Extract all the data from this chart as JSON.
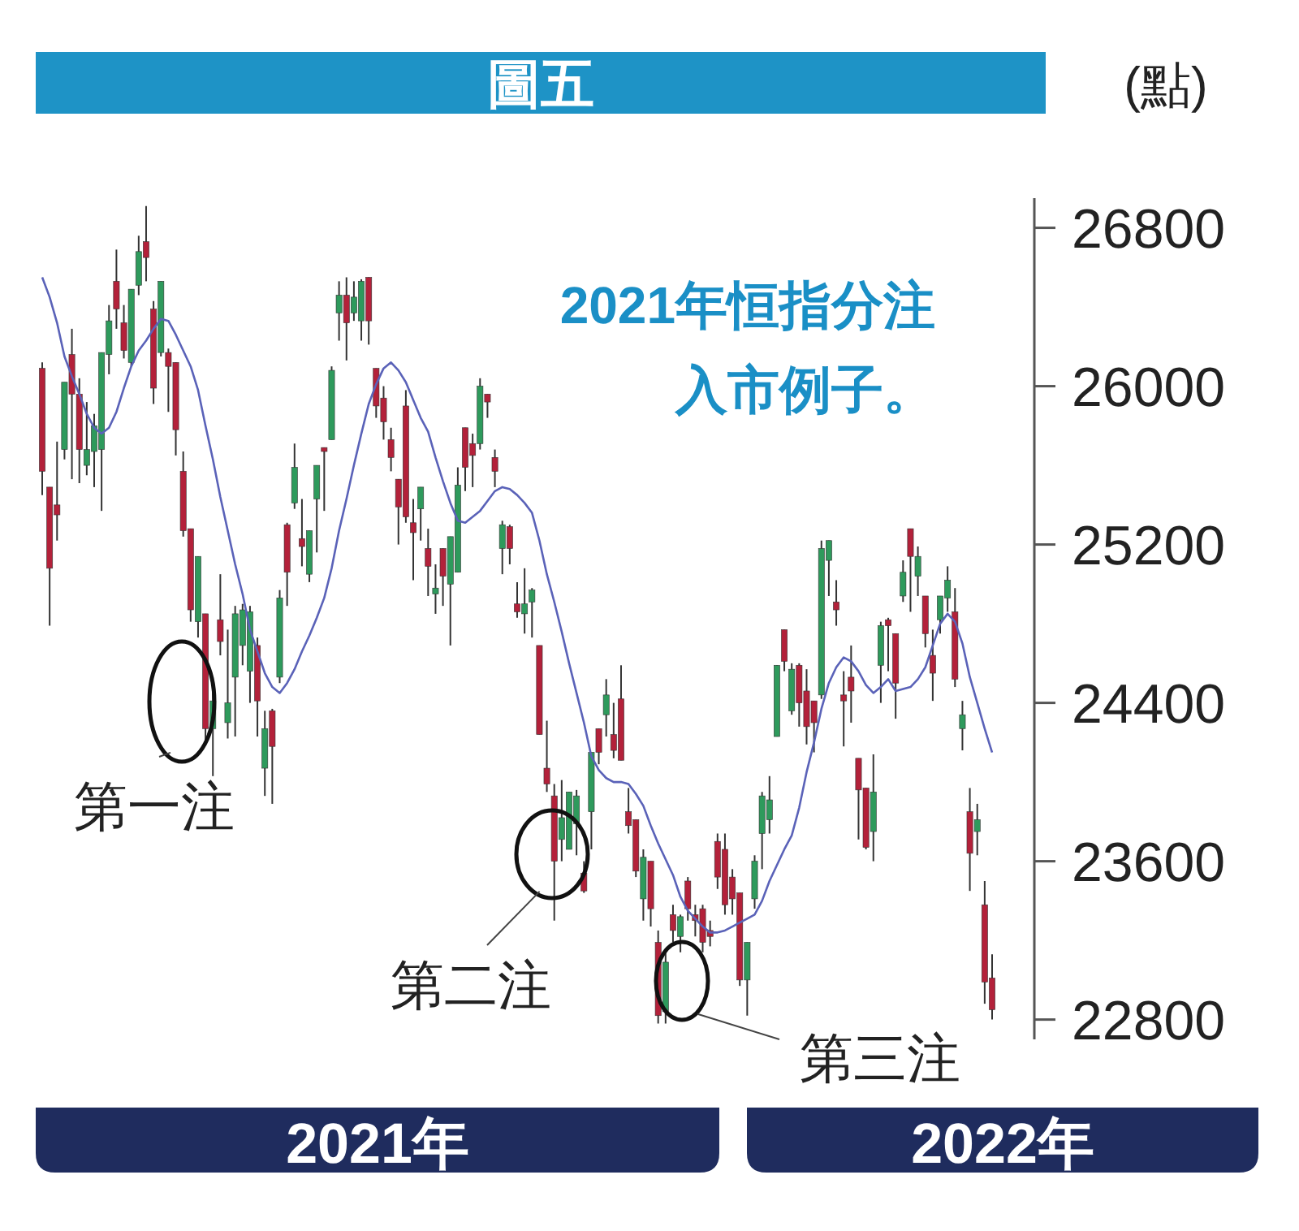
{
  "chart_data": {
    "type": "candlestick",
    "title": "圖五",
    "ylabel": "(點)",
    "annotations": [
      "2021年恒指分注入市例子。",
      "第一注",
      "第二注",
      "第三注",
      "2021年",
      "2022年"
    ],
    "categories": [
      null,
      null,
      null,
      null,
      null,
      null,
      null,
      null,
      null,
      null,
      null,
      null,
      null,
      null,
      null,
      null,
      null,
      null,
      null,
      null,
      null,
      null,
      null,
      null,
      null,
      null,
      null,
      null,
      null,
      null,
      null,
      null,
      null,
      null,
      null,
      null,
      null,
      null,
      null,
      null,
      null,
      null,
      null,
      null,
      null,
      null,
      null,
      null,
      null,
      null,
      null,
      null,
      null,
      null,
      null,
      null,
      null,
      null,
      null,
      null,
      null,
      null,
      null,
      null,
      null,
      null,
      null,
      null,
      null,
      null,
      null,
      null,
      null,
      null,
      null,
      null,
      null,
      null,
      null,
      null,
      null,
      null,
      null,
      null,
      null,
      null,
      null,
      null,
      null,
      null,
      null,
      null,
      null,
      null,
      null,
      null,
      null,
      null,
      null,
      null,
      null,
      null,
      null,
      null,
      null,
      null,
      null,
      null,
      null,
      null,
      null,
      null,
      null,
      null,
      null,
      null,
      null,
      null,
      null,
      null,
      null,
      null,
      null,
      null,
      null,
      null,
      null,
      null,
      null
    ],
    "ohlc": [
      [
        26090,
        26120,
        25450,
        25570
      ],
      [
        25490,
        25490,
        24790,
        25080
      ],
      [
        25400,
        25720,
        25220,
        25350
      ],
      [
        25680,
        26020,
        25630,
        26020
      ],
      [
        26160,
        26290,
        25530,
        25960
      ],
      [
        25960,
        26040,
        25510,
        25680
      ],
      [
        25600,
        25920,
        25550,
        25680
      ],
      [
        25670,
        25860,
        25490,
        25800
      ],
      [
        25680,
        26170,
        25370,
        26170
      ],
      [
        26160,
        26410,
        26060,
        26330
      ],
      [
        26530,
        26690,
        26290,
        26390
      ],
      [
        26320,
        26410,
        26140,
        26180
      ],
      [
        26120,
        26490,
        26100,
        26490
      ],
      [
        26510,
        26760,
        26460,
        26680
      ],
      [
        26730,
        26910,
        26530,
        26650
      ],
      [
        26390,
        26430,
        25910,
        25990
      ],
      [
        26170,
        26530,
        26150,
        26530
      ],
      [
        26170,
        26190,
        25870,
        26100
      ],
      [
        26120,
        26120,
        25650,
        25780
      ],
      [
        25570,
        25670,
        25240,
        25270
      ],
      [
        25280,
        25280,
        24810,
        24870
      ],
      [
        24810,
        25140,
        24730,
        25140
      ],
      [
        24850,
        24850,
        24200,
        24270
      ],
      [
        24270,
        24490,
        24030,
        24410
      ],
      [
        24820,
        25050,
        24640,
        24710
      ],
      [
        24300,
        24770,
        24220,
        24400
      ],
      [
        24530,
        24890,
        24230,
        24850
      ],
      [
        24690,
        24900,
        24590,
        24870
      ],
      [
        24560,
        24890,
        24400,
        24860
      ],
      [
        24690,
        24730,
        24230,
        24410
      ],
      [
        24070,
        24360,
        23930,
        24270
      ],
      [
        24360,
        24370,
        23890,
        24180
      ],
      [
        24530,
        24970,
        24500,
        24930
      ],
      [
        25300,
        25310,
        24890,
        25060
      ],
      [
        25410,
        25710,
        25380,
        25590
      ],
      [
        25230,
        25430,
        25090,
        25190
      ],
      [
        25050,
        25270,
        25010,
        25270
      ],
      [
        25430,
        25600,
        25160,
        25600
      ],
      [
        25690,
        25690,
        25370,
        25670
      ],
      [
        25730,
        26100,
        25730,
        26080
      ],
      [
        26370,
        26530,
        26230,
        26460
      ],
      [
        26460,
        26550,
        26130,
        26320
      ],
      [
        26370,
        26530,
        26330,
        26450
      ],
      [
        26330,
        26540,
        26230,
        26530
      ],
      [
        26550,
        26550,
        26210,
        26330
      ],
      [
        26090,
        26090,
        25840,
        25900
      ],
      [
        25940,
        26000,
        25730,
        25820
      ],
      [
        25730,
        25790,
        25570,
        25640
      ],
      [
        25530,
        25530,
        25200,
        25390
      ],
      [
        25900,
        25980,
        25310,
        25340
      ],
      [
        25310,
        25430,
        25020,
        25260
      ],
      [
        25380,
        25490,
        25220,
        25490
      ],
      [
        25180,
        25280,
        24940,
        25090
      ],
      [
        24950,
        25100,
        24850,
        24980
      ],
      [
        25180,
        25180,
        24890,
        25040
      ],
      [
        25000,
        25240,
        24690,
        25240
      ],
      [
        25060,
        25590,
        25060,
        25500
      ],
      [
        25790,
        25790,
        25470,
        25590
      ],
      [
        25710,
        25760,
        25490,
        25650
      ],
      [
        25710,
        26040,
        25680,
        26000
      ],
      [
        25960,
        25960,
        25840,
        25920
      ],
      [
        25640,
        25680,
        25490,
        25570
      ],
      [
        25180,
        25320,
        25050,
        25300
      ],
      [
        25290,
        25300,
        25100,
        25180
      ],
      [
        24900,
        25010,
        24830,
        24860
      ],
      [
        24850,
        25080,
        24750,
        24900
      ],
      [
        24910,
        24980,
        24730,
        24970
      ],
      [
        24690,
        24690,
        24240,
        24240
      ],
      [
        24070,
        24310,
        23950,
        23990
      ],
      [
        23930,
        23990,
        23300,
        23600
      ],
      [
        23710,
        24010,
        23600,
        23820
      ],
      [
        23660,
        23950,
        23660,
        23950
      ],
      [
        23790,
        23960,
        23630,
        23930
      ],
      [
        23540,
        23600,
        23440,
        23450
      ],
      [
        23850,
        24150,
        23660,
        24150
      ],
      [
        24270,
        24270,
        24090,
        24150
      ],
      [
        24340,
        24520,
        24230,
        24440
      ],
      [
        24240,
        24400,
        24120,
        24160
      ],
      [
        24420,
        24590,
        24110,
        24110
      ],
      [
        23850,
        23970,
        23740,
        23780
      ],
      [
        23810,
        23810,
        23520,
        23550
      ],
      [
        23410,
        23660,
        23300,
        23620
      ],
      [
        23600,
        23600,
        23270,
        23360
      ],
      [
        23190,
        23250,
        22780,
        22820
      ],
      [
        22840,
        23140,
        22780,
        23090
      ],
      [
        23330,
        23380,
        23190,
        23250
      ],
      [
        23220,
        23330,
        23140,
        23320
      ],
      [
        23500,
        23520,
        23300,
        23360
      ],
      [
        23330,
        23380,
        23220,
        23300
      ],
      [
        23360,
        23380,
        23140,
        23190
      ],
      [
        23250,
        23300,
        23170,
        23220
      ],
      [
        23700,
        23740,
        23460,
        23520
      ],
      [
        23660,
        23740,
        23330,
        23380
      ],
      [
        23520,
        23560,
        23330,
        23410
      ],
      [
        23440,
        23440,
        22970,
        23000
      ],
      [
        23000,
        23190,
        22820,
        23190
      ],
      [
        23410,
        23630,
        23360,
        23600
      ],
      [
        23740,
        23950,
        23560,
        23930
      ],
      [
        23810,
        24030,
        23740,
        23910
      ],
      [
        24230,
        24590,
        24230,
        24590
      ],
      [
        24770,
        24770,
        24560,
        24610
      ],
      [
        24360,
        24600,
        24340,
        24570
      ],
      [
        24590,
        24600,
        24280,
        24400
      ],
      [
        24460,
        24570,
        24190,
        24280
      ],
      [
        24410,
        24410,
        24150,
        24300
      ],
      [
        24440,
        25220,
        24420,
        25180
      ],
      [
        25120,
        25220,
        24940,
        25220
      ],
      [
        24910,
        25020,
        24790,
        24870
      ],
      [
        24440,
        24560,
        24180,
        24410
      ],
      [
        24530,
        24690,
        24300,
        24460
      ],
      [
        24120,
        24120,
        23710,
        23960
      ],
      [
        23970,
        23970,
        23660,
        23670
      ],
      [
        23750,
        24140,
        23600,
        23950
      ],
      [
        24590,
        24810,
        24400,
        24790
      ],
      [
        24820,
        24830,
        24560,
        24790
      ],
      [
        24750,
        24750,
        24320,
        24500
      ],
      [
        24940,
        25120,
        24910,
        25060
      ],
      [
        25280,
        25280,
        24860,
        25140
      ],
      [
        25040,
        25190,
        24940,
        25140
      ],
      [
        24940,
        24940,
        24680,
        24750
      ],
      [
        24640,
        24770,
        24410,
        24550
      ],
      [
        24820,
        24940,
        24750,
        24940
      ],
      [
        24930,
        25090,
        24860,
        25020
      ],
      [
        24860,
        24980,
        24480,
        24520
      ],
      [
        24270,
        24410,
        24160,
        24340
      ],
      [
        23850,
        23970,
        23450,
        23640
      ],
      [
        23750,
        23890,
        23630,
        23810
      ],
      [
        23380,
        23500,
        22880,
        22990
      ],
      [
        23010,
        23130,
        22800,
        22850
      ]
    ],
    "colors": [
      "#b3213a",
      "#b3213a",
      "#b3213a",
      "#2e9a5c",
      "#b3213a",
      "#b3213a",
      "#2e9a5c",
      "#2e9a5c",
      "#2e9a5c",
      "#2e9a5c",
      "#b3213a",
      "#b3213a",
      "#2e9a5c",
      "#2e9a5c",
      "#b3213a",
      "#b3213a",
      "#2e9a5c",
      "#b3213a",
      "#b3213a",
      "#b3213a",
      "#b3213a",
      "#2e9a5c",
      "#b3213a",
      "#2e9a5c",
      "#b3213a",
      "#2e9a5c",
      "#2e9a5c",
      "#2e9a5c",
      "#2e9a5c",
      "#b3213a",
      "#2e9a5c",
      "#b3213a",
      "#2e9a5c",
      "#b3213a",
      "#2e9a5c",
      "#b3213a",
      "#2e9a5c",
      "#2e9a5c",
      "#b3213a",
      "#2e9a5c",
      "#2e9a5c",
      "#b3213a",
      "#2e9a5c",
      "#2e9a5c",
      "#b3213a",
      "#b3213a",
      "#b3213a",
      "#b3213a",
      "#b3213a",
      "#b3213a",
      "#b3213a",
      "#2e9a5c",
      "#b3213a",
      "#2e9a5c",
      "#b3213a",
      "#2e9a5c",
      "#2e9a5c",
      "#b3213a",
      "#b3213a",
      "#2e9a5c",
      "#b3213a",
      "#b3213a",
      "#2e9a5c",
      "#b3213a",
      "#b3213a",
      "#2e9a5c",
      "#2e9a5c",
      "#b3213a",
      "#b3213a",
      "#b3213a",
      "#2e9a5c",
      "#2e9a5c",
      "#2e9a5c",
      "#b3213a",
      "#2e9a5c",
      "#b3213a",
      "#2e9a5c",
      "#b3213a",
      "#b3213a",
      "#b3213a",
      "#b3213a",
      "#2e9a5c",
      "#b3213a",
      "#b3213a",
      "#2e9a5c",
      "#b3213a",
      "#2e9a5c",
      "#b3213a",
      "#b3213a",
      "#b3213a",
      "#b3213a",
      "#b3213a",
      "#b3213a",
      "#b3213a",
      "#b3213a",
      "#2e9a5c",
      "#2e9a5c",
      "#2e9a5c",
      "#2e9a5c",
      "#2e9a5c",
      "#b3213a",
      "#2e9a5c",
      "#b3213a",
      "#b3213a",
      "#b3213a",
      "#2e9a5c",
      "#2e9a5c",
      "#b3213a",
      "#b3213a",
      "#b3213a",
      "#b3213a",
      "#b3213a",
      "#2e9a5c",
      "#2e9a5c",
      "#b3213a",
      "#b3213a",
      "#2e9a5c",
      "#b3213a",
      "#2e9a5c",
      "#b3213a",
      "#b3213a",
      "#2e9a5c",
      "#2e9a5c",
      "#b3213a",
      "#2e9a5c",
      "#b3213a",
      "#2e9a5c",
      "#b3213a",
      "#b3213a"
    ],
    "series": [
      {
        "type": "line",
        "color": "#5a62b8",
        "values": [
          26550,
          26450,
          26320,
          26150,
          26050,
          25960,
          25860,
          25790,
          25760,
          25790,
          25870,
          25990,
          26100,
          26180,
          26230,
          26290,
          26340,
          26330,
          26260,
          26180,
          26100,
          25980,
          25800,
          25630,
          25440,
          25270,
          25100,
          24950,
          24770,
          24660,
          24550,
          24480,
          24450,
          24500,
          24570,
          24660,
          24740,
          24830,
          24930,
          25080,
          25270,
          25430,
          25600,
          25760,
          25910,
          26010,
          26090,
          26120,
          26080,
          26020,
          25930,
          25840,
          25770,
          25640,
          25520,
          25410,
          25320,
          25310,
          25340,
          25370,
          25420,
          25470,
          25490,
          25480,
          25450,
          25410,
          25360,
          25220,
          25050,
          24910,
          24760,
          24600,
          24450,
          24300,
          24130,
          24060,
          24020,
          24000,
          24000,
          23990,
          23940,
          23880,
          23780,
          23690,
          23610,
          23530,
          23420,
          23350,
          23310,
          23270,
          23240,
          23240,
          23250,
          23270,
          23290,
          23310,
          23330,
          23400,
          23500,
          23580,
          23660,
          23730,
          23870,
          24050,
          24200,
          24370,
          24500,
          24580,
          24630,
          24610,
          24560,
          24490,
          24450,
          24480,
          24520,
          24460,
          24470,
          24480,
          24520,
          24580,
          24690,
          24800,
          24850,
          24810,
          24700,
          24530,
          24400,
          24270,
          24150
        ]
      }
    ],
    "ylim": [
      22700,
      26950
    ],
    "yticks": [
      22800,
      23600,
      24400,
      25200,
      26000,
      26800
    ]
  }
}
